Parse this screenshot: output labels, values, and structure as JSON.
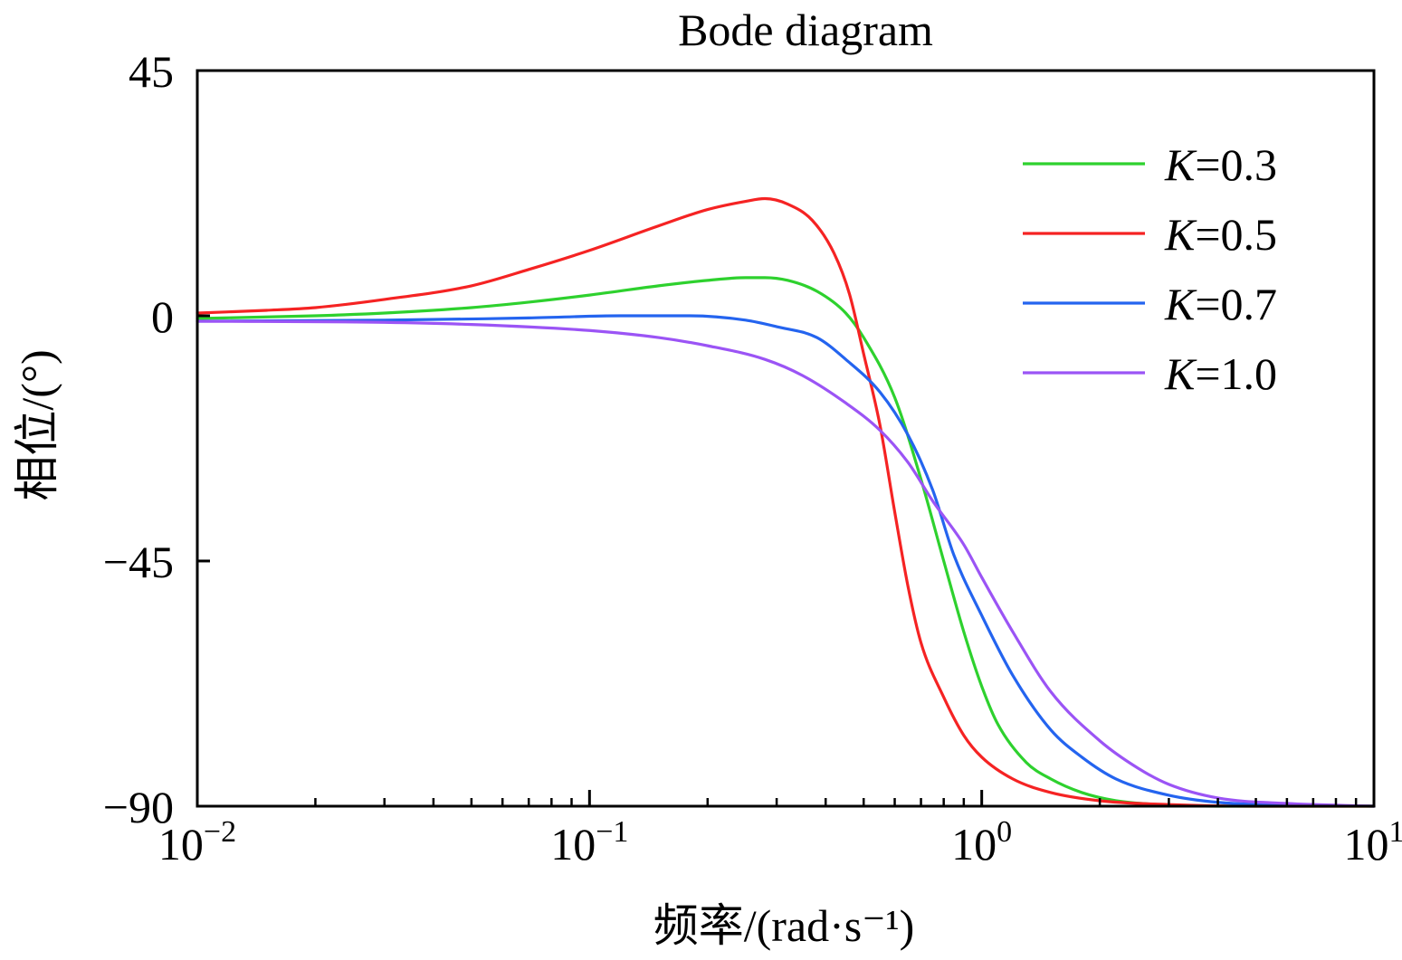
{
  "chart_data": {
    "type": "line",
    "title": "Bode diagram",
    "xlabel": "频率/(rad·s⁻¹)",
    "ylabel": "相位/(°)",
    "xscale": "log",
    "xlim": [
      0.01,
      10
    ],
    "ylim": [
      -90,
      45
    ],
    "x_ticks": [
      {
        "value": 0.01,
        "base": "10",
        "exp": "−2"
      },
      {
        "value": 0.1,
        "base": "10",
        "exp": "−1"
      },
      {
        "value": 1,
        "base": "10",
        "exp": "0"
      },
      {
        "value": 10,
        "base": "10",
        "exp": "1"
      }
    ],
    "y_ticks": [
      {
        "value": 45,
        "label": "45"
      },
      {
        "value": 0,
        "label": "0"
      },
      {
        "value": -45,
        "label": "−45"
      },
      {
        "value": -90,
        "label": "−90"
      }
    ],
    "grid": false,
    "legend_position": "top-right",
    "series": [
      {
        "name": "K=0.3",
        "legend_var": "K",
        "legend_value": "=0.3",
        "color": "#2ed12e",
        "x": [
          0.01,
          0.02,
          0.03,
          0.05,
          0.07,
          0.1,
          0.15,
          0.2,
          0.25,
          0.28,
          0.32,
          0.38,
          0.45,
          0.5,
          0.6,
          0.7,
          0.8,
          0.9,
          1.0,
          1.1,
          1.3,
          1.5,
          1.8,
          2.2,
          3,
          4,
          6,
          10
        ],
        "y": [
          -0.5,
          0,
          0.5,
          1.5,
          2.5,
          3.8,
          5.5,
          6.5,
          7.0,
          7.0,
          6.5,
          4.5,
          0.5,
          -4,
          -15,
          -30,
          -45,
          -58,
          -68,
          -75,
          -82,
          -85,
          -87.5,
          -89,
          -89.8,
          -90,
          -90,
          -90
        ]
      },
      {
        "name": "K=0.5",
        "legend_var": "K",
        "legend_value": "=0.5",
        "color": "#f52323",
        "x": [
          0.01,
          0.015,
          0.02,
          0.03,
          0.05,
          0.07,
          0.1,
          0.15,
          0.2,
          0.25,
          0.28,
          0.32,
          0.37,
          0.42,
          0.46,
          0.5,
          0.55,
          0.6,
          0.65,
          0.7,
          0.8,
          0.9,
          1.0,
          1.2,
          1.5,
          2,
          3,
          5,
          10
        ],
        "y": [
          0.5,
          1,
          1.5,
          3,
          5.5,
          8.5,
          12,
          16.5,
          19.5,
          21,
          21.5,
          20.5,
          17.5,
          11.5,
          4,
          -7,
          -20,
          -36,
          -50,
          -60,
          -70,
          -77,
          -81,
          -85,
          -87.5,
          -89,
          -89.7,
          -90,
          -90
        ]
      },
      {
        "name": "K=0.7",
        "legend_var": "K",
        "legend_value": "=0.7",
        "color": "#2464ef",
        "x": [
          0.01,
          0.03,
          0.07,
          0.12,
          0.18,
          0.25,
          0.3,
          0.38,
          0.45,
          0.55,
          0.65,
          0.75,
          0.85,
          1.0,
          1.2,
          1.5,
          1.8,
          2.2,
          3,
          4,
          6,
          10
        ],
        "y": [
          -1,
          -0.8,
          -0.4,
          0,
          0,
          -0.8,
          -2,
          -4,
          -8,
          -14,
          -22,
          -32,
          -44,
          -55,
          -66,
          -76,
          -81,
          -85,
          -88,
          -89.3,
          -89.8,
          -90
        ]
      },
      {
        "name": "K=1.0",
        "legend_var": "K",
        "legend_value": "=1.0",
        "color": "#9b54f5",
        "x": [
          0.01,
          0.03,
          0.05,
          0.1,
          0.15,
          0.2,
          0.28,
          0.35,
          0.45,
          0.55,
          0.65,
          0.75,
          0.9,
          1.0,
          1.2,
          1.5,
          2,
          2.5,
          3,
          4,
          6,
          10
        ],
        "y": [
          -1,
          -1.2,
          -1.6,
          -2.7,
          -4,
          -5.5,
          -8,
          -11,
          -16,
          -21,
          -27,
          -34,
          -42,
          -48,
          -58,
          -69,
          -78,
          -83,
          -86,
          -88.5,
          -89.5,
          -90
        ]
      }
    ]
  }
}
